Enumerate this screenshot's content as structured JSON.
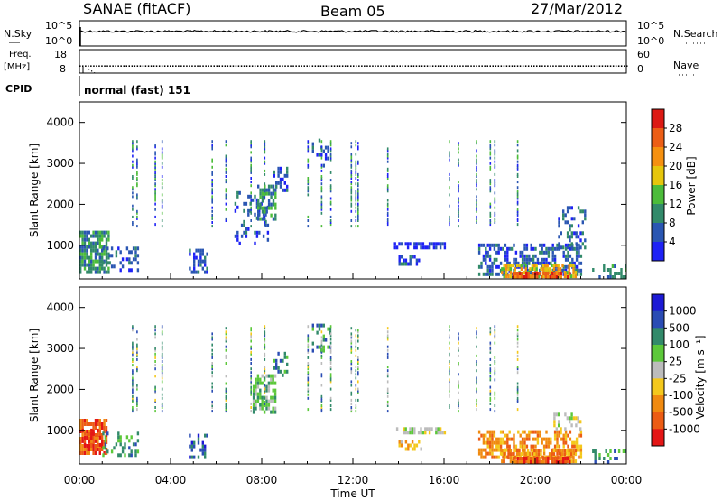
{
  "header": {
    "station": "SANAE (fitACF)",
    "beam": "Beam 05",
    "date": "27/Mar/2012"
  },
  "nsky_panel": {
    "label": "N.Sky",
    "right_label": "N.Search",
    "left_ticks": [
      "10^5",
      "10^0"
    ],
    "right_ticks": [
      "10^5",
      "10^0"
    ],
    "nsky_level_fraction": 0.58,
    "nsearch_level_fraction": 0.58
  },
  "freq_panel": {
    "label_line1": "Freq.",
    "label_line2": "[MHz]",
    "right_label": "Nave",
    "left_ticks": [
      "18",
      "8"
    ],
    "right_ticks": [
      "60",
      "0"
    ],
    "freq_mhz": 11.0,
    "freq_range": [
      8,
      18
    ]
  },
  "cpid_panel": {
    "label": "CPID",
    "mode_text": "normal (fast) 151"
  },
  "xaxis": {
    "title": "Time UT",
    "ticks": [
      "00:00",
      "04:00",
      "08:00",
      "12:00",
      "16:00",
      "20:00",
      "00:00"
    ]
  },
  "colors": {
    "power": [
      "#1e22f5",
      "#2a56b2",
      "#328a6a",
      "#4cbc3a",
      "#e6c60c",
      "#f59010",
      "#ec5e16",
      "#dc1a14"
    ],
    "velocity": [
      "#1c1ad4",
      "#2a4cb4",
      "#328a6a",
      "#5cc83a",
      "#bcbcbc",
      "#f4c81c",
      "#f08a10",
      "#ec5c14",
      "#e41616"
    ]
  },
  "chart_data": [
    {
      "type": "heatmap",
      "name": "power",
      "x_range_hours": [
        0,
        24
      ],
      "ylabel": "Slant Range [km]",
      "ylim": [
        180,
        4500
      ],
      "yticks": [
        1000,
        2000,
        3000,
        4000
      ],
      "colorbar_label": "Power [dB]",
      "colorbar_ticks": [
        "4",
        "8",
        "12",
        "16",
        "20",
        "24",
        "28"
      ],
      "regions": [
        {
          "t0": 0.0,
          "t1": 1.3,
          "r0": 300,
          "r1": 1300,
          "c": 2,
          "d": 0.8
        },
        {
          "t0": 1.0,
          "t1": 2.6,
          "r0": 350,
          "r1": 950,
          "c": 1,
          "d": 0.3
        },
        {
          "t0": 4.8,
          "t1": 5.6,
          "r0": 300,
          "r1": 900,
          "c": 1,
          "d": 0.45
        },
        {
          "t0": 6.8,
          "t1": 8.3,
          "r0": 1000,
          "r1": 2300,
          "c": 1,
          "d": 0.25
        },
        {
          "t0": 7.8,
          "t1": 8.6,
          "r0": 1600,
          "r1": 2400,
          "c": 2,
          "d": 0.55
        },
        {
          "t0": 8.5,
          "t1": 9.1,
          "r0": 2300,
          "r1": 2900,
          "c": 1,
          "d": 0.45
        },
        {
          "t0": 10.2,
          "t1": 11.0,
          "r0": 2900,
          "r1": 3600,
          "c": 1,
          "d": 0.35
        },
        {
          "t0": 13.8,
          "t1": 16.0,
          "r0": 900,
          "r1": 1050,
          "c": 0,
          "d": 0.55
        },
        {
          "t0": 14.0,
          "t1": 15.0,
          "r0": 500,
          "r1": 750,
          "c": 1,
          "d": 0.45
        },
        {
          "t0": 17.5,
          "t1": 22.0,
          "r0": 250,
          "r1": 1000,
          "c": 1,
          "d": 0.55
        },
        {
          "t0": 18.5,
          "t1": 21.8,
          "r0": 200,
          "r1": 550,
          "c": 4,
          "d": 0.7
        },
        {
          "t0": 19.0,
          "t1": 21.5,
          "r0": 180,
          "r1": 320,
          "c": 6,
          "d": 0.85
        },
        {
          "t0": 21.0,
          "t1": 22.2,
          "r0": 900,
          "r1": 1900,
          "c": 1,
          "d": 0.35
        },
        {
          "t0": 22.5,
          "t1": 24.0,
          "r0": 180,
          "r1": 450,
          "c": 2,
          "d": 0.3
        }
      ],
      "streaks": [
        2.3,
        2.5,
        3.3,
        3.6,
        5.8,
        6.4,
        7.5,
        8.1,
        10.0,
        10.6,
        11.0,
        11.9,
        12.1,
        12.2,
        13.5,
        16.2,
        16.6,
        17.4,
        18.0,
        18.2,
        19.2
      ]
    },
    {
      "type": "heatmap",
      "name": "velocity",
      "x_range_hours": [
        0,
        24
      ],
      "ylabel": "Slant Range [km]",
      "ylim": [
        180,
        4500
      ],
      "yticks": [
        1000,
        2000,
        3000,
        4000
      ],
      "colorbar_label": "Velocity [m s⁻¹]",
      "colorbar_ticks": [
        "1000",
        "500",
        "100",
        "25",
        "-25",
        "-100",
        "-500",
        "-1000"
      ],
      "regions": [
        {
          "t0": 0.0,
          "t1": 1.2,
          "r0": 400,
          "r1": 1200,
          "c": 7,
          "d": 0.8
        },
        {
          "t0": 0.1,
          "t1": 0.9,
          "r0": 600,
          "r1": 1000,
          "c": 8,
          "d": 0.45
        },
        {
          "t0": 1.0,
          "t1": 2.6,
          "r0": 350,
          "r1": 950,
          "c": 2,
          "d": 0.3
        },
        {
          "t0": 4.8,
          "t1": 5.6,
          "r0": 300,
          "r1": 900,
          "c": 1,
          "d": 0.45
        },
        {
          "t0": 7.6,
          "t1": 8.6,
          "r0": 1400,
          "r1": 2300,
          "c": 3,
          "d": 0.6
        },
        {
          "t0": 8.5,
          "t1": 9.1,
          "r0": 2300,
          "r1": 2900,
          "c": 2,
          "d": 0.45
        },
        {
          "t0": 10.2,
          "t1": 11.0,
          "r0": 2900,
          "r1": 3600,
          "c": 2,
          "d": 0.35
        },
        {
          "t0": 13.8,
          "t1": 16.0,
          "r0": 900,
          "r1": 1050,
          "c": 4,
          "d": 0.6
        },
        {
          "t0": 14.0,
          "t1": 15.0,
          "r0": 500,
          "r1": 750,
          "c": 5,
          "d": 0.5
        },
        {
          "t0": 17.5,
          "t1": 22.0,
          "r0": 300,
          "r1": 1000,
          "c": 6,
          "d": 0.55
        },
        {
          "t0": 18.5,
          "t1": 21.8,
          "r0": 200,
          "r1": 550,
          "c": 6,
          "d": 0.7
        },
        {
          "t0": 19.0,
          "t1": 21.5,
          "r0": 180,
          "r1": 320,
          "c": 7,
          "d": 0.8
        },
        {
          "t0": 20.8,
          "t1": 22.0,
          "r0": 900,
          "r1": 1400,
          "c": 4,
          "d": 0.35
        },
        {
          "t0": 22.5,
          "t1": 24.0,
          "r0": 180,
          "r1": 450,
          "c": 2,
          "d": 0.3
        }
      ],
      "streaks": [
        2.3,
        2.5,
        3.3,
        3.6,
        5.8,
        6.4,
        7.5,
        8.1,
        10.0,
        10.6,
        11.0,
        11.9,
        12.1,
        12.2,
        13.5,
        16.2,
        16.6,
        17.4,
        18.0,
        18.2,
        19.2
      ]
    }
  ]
}
